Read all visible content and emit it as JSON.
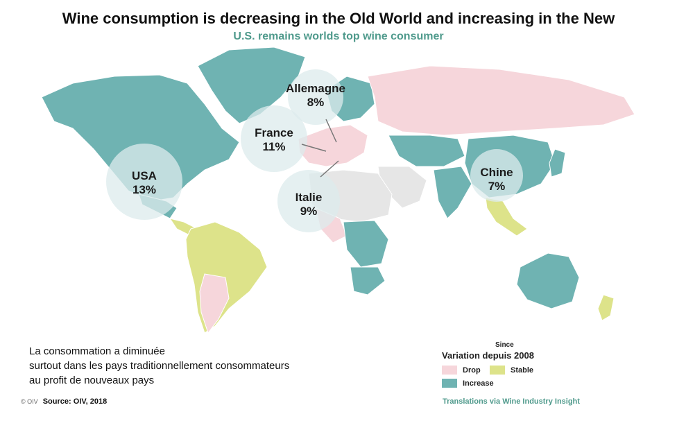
{
  "title": "Wine consumption is decreasing in the Old World and increasing in the New",
  "subtitle": "U.S. remains worlds top wine consumer",
  "colors": {
    "drop": "#f6d6db",
    "stable": "#dde38a",
    "increase": "#6fb3b2",
    "nodata": "#e6e6e6",
    "bubble": "#dcebec"
  },
  "bubbles": [
    {
      "country": "USA",
      "share": "13%"
    },
    {
      "country": "France",
      "share": "11%"
    },
    {
      "country": "Allemagne",
      "share": "8%"
    },
    {
      "country": "Italie",
      "share": "9%"
    },
    {
      "country": "Chine",
      "share": "7%"
    }
  ],
  "caption": {
    "line1": "La consommation a diminuée",
    "line2": "surtout dans les pays traditionnellement consommateurs",
    "line3": "au profit de nouveaux pays"
  },
  "legend": {
    "since": "Since",
    "title": "Variation depuis 2008",
    "drop": "Drop",
    "stable": "Stable",
    "increase": "Increase"
  },
  "source": {
    "copyright": "© OIV",
    "text": "Source: OIV, 2018"
  },
  "credit": "Translations via Wine Industry Insight",
  "region_status": {
    "north-america": "increase",
    "greenland": "increase",
    "mexico": "increase",
    "central-america": "stable",
    "south-america": "stable",
    "south-america-south": "drop",
    "europe-west": "drop",
    "scandinavia": "increase",
    "russia": "drop",
    "central-asia": "increase",
    "china": "increase",
    "japan": "increase",
    "southeast-asia": "stable",
    "africa-north": "nodata",
    "africa-west": "drop",
    "africa-central": "increase",
    "africa-south": "increase",
    "middle-east": "nodata",
    "india": "increase",
    "australia": "increase",
    "new-zealand": "stable"
  }
}
